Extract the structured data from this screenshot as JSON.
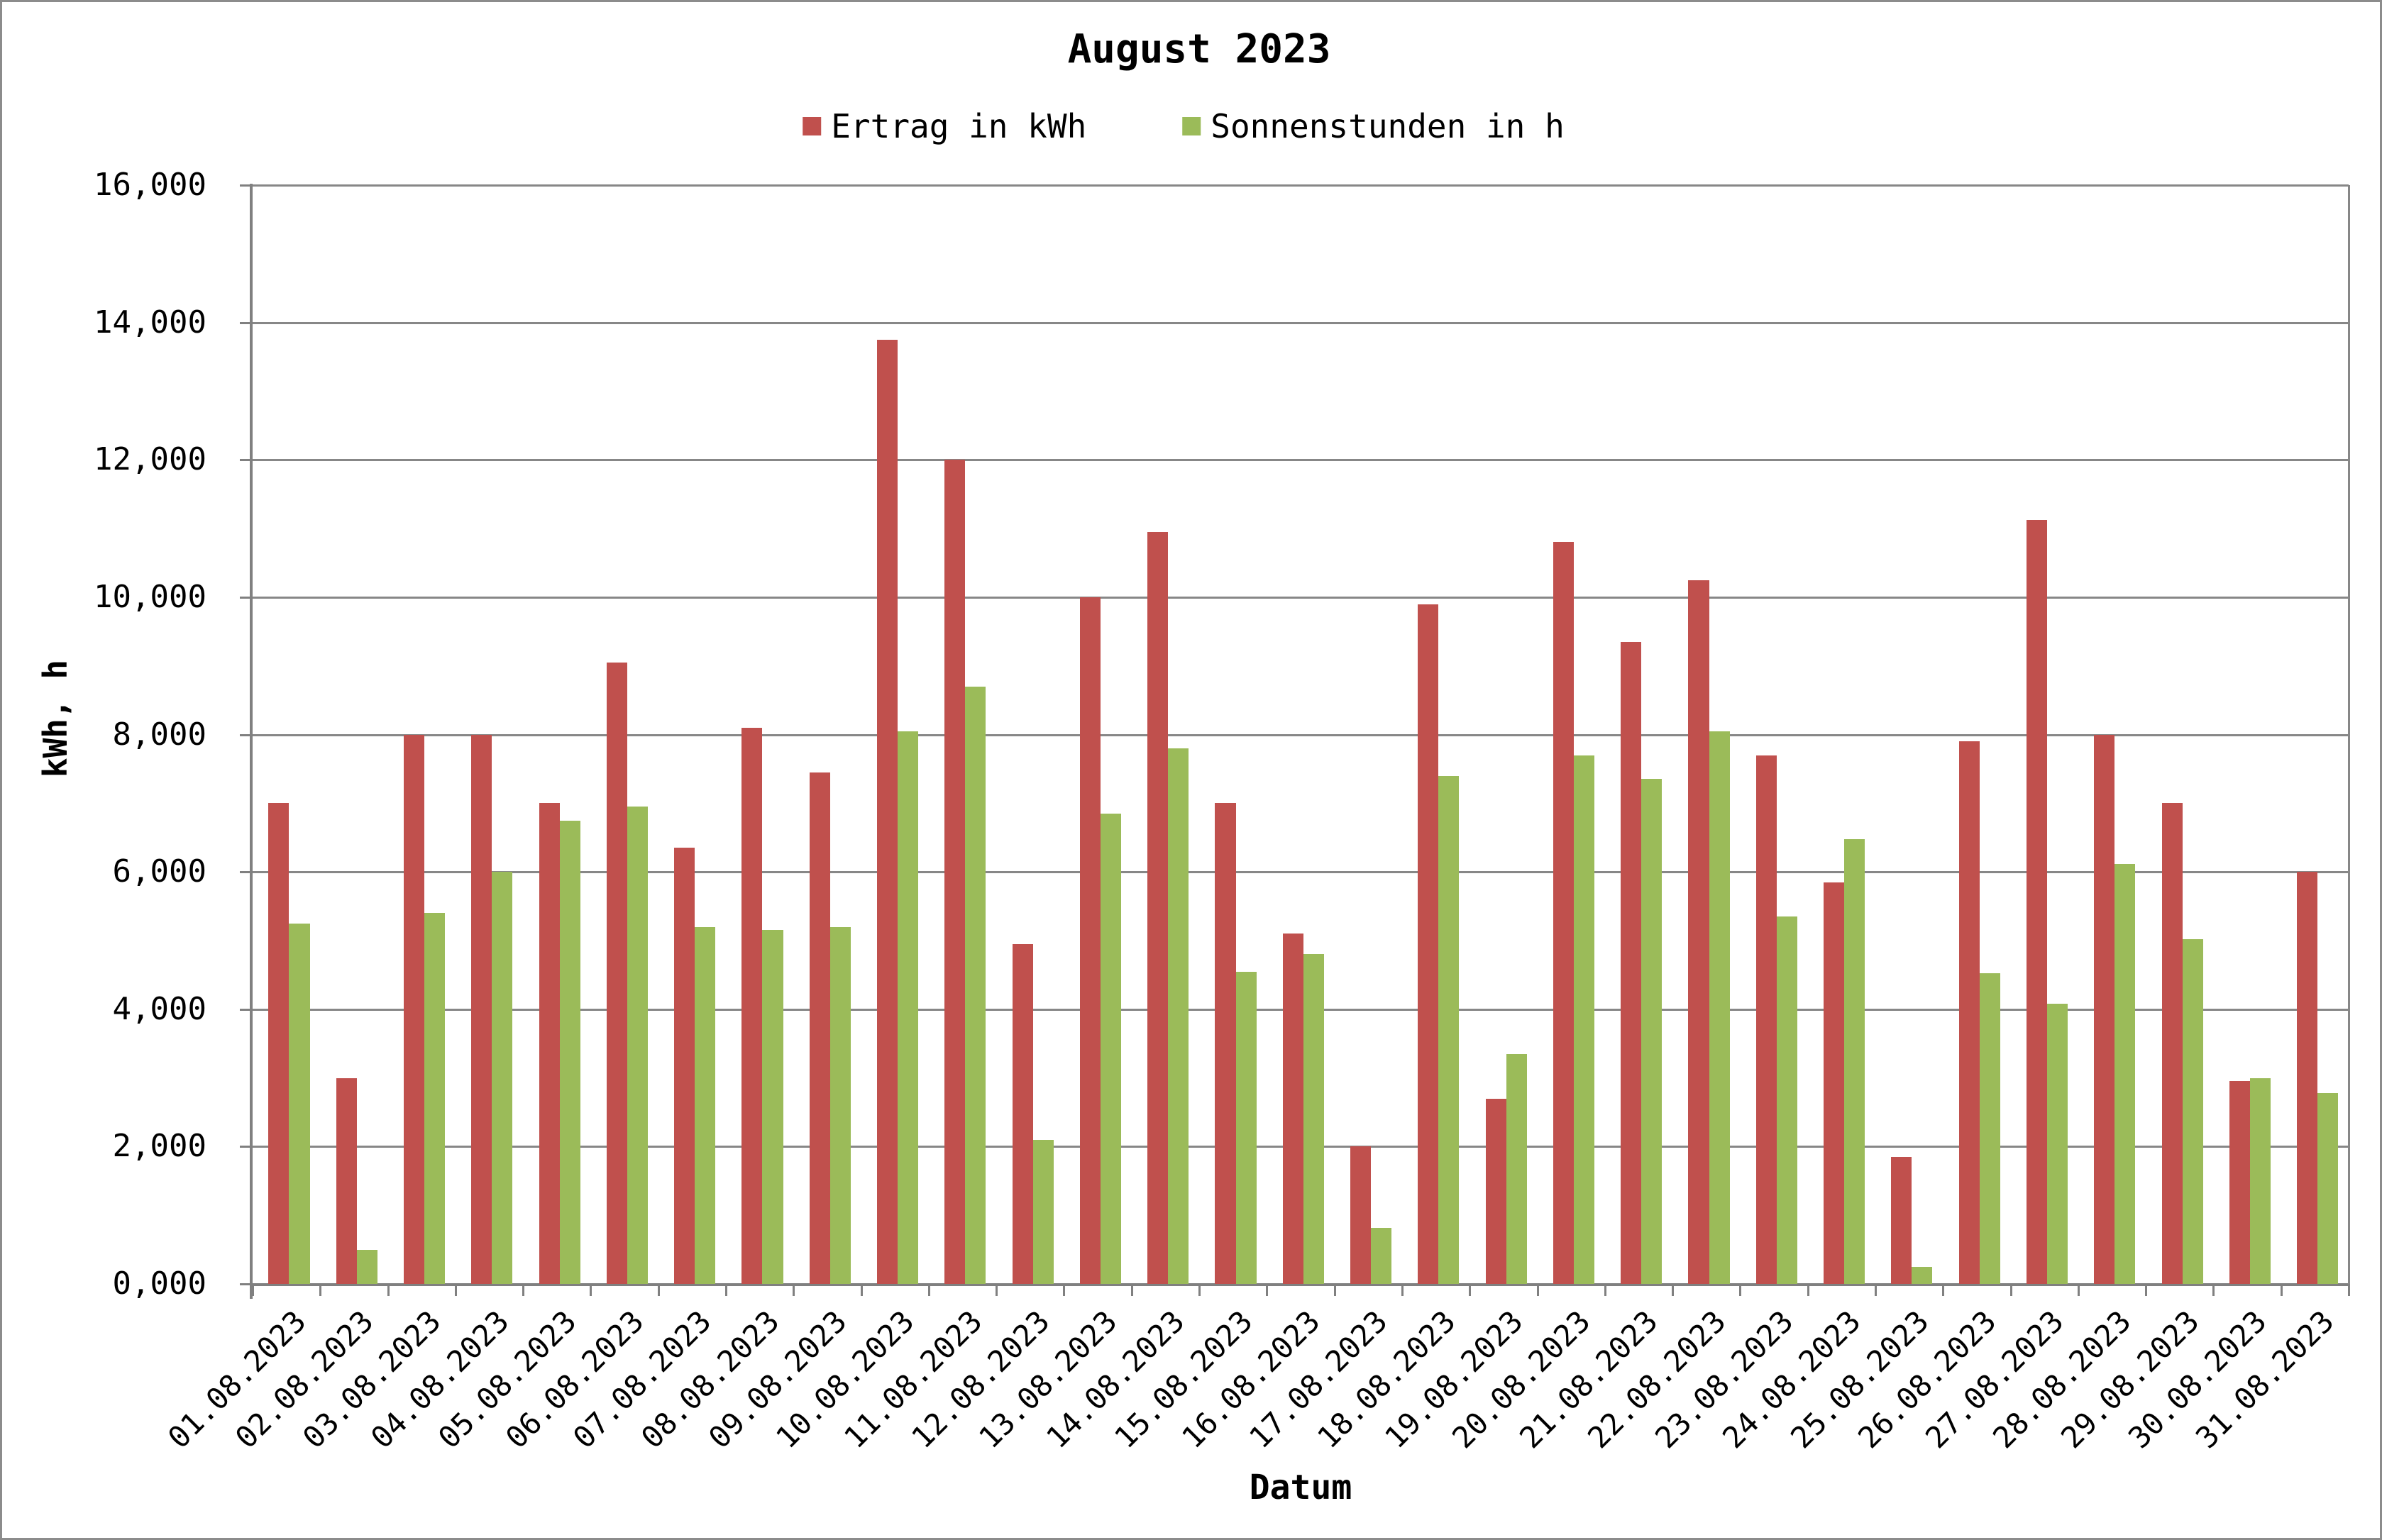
{
  "title": "August 2023",
  "legend": [
    {
      "label": "Ertrag in kWh",
      "color": "#C0504D"
    },
    {
      "label": "Sonnenstunden in h",
      "color": "#9BBB59"
    }
  ],
  "colors": {
    "series_red": "#C0504D",
    "series_green": "#9BBB59",
    "gridline": "#878787",
    "axis": "#808080",
    "frame_border": "#8C8C8C",
    "background": "#FFFFFF",
    "text": "#000000"
  },
  "chart_data": {
    "type": "bar",
    "title": "August 2023",
    "xlabel": "Datum",
    "ylabel": "kWh, h",
    "ylim": [
      0,
      16000
    ],
    "ytick_step": 2000,
    "ytick_labels": [
      "0,000",
      "2,000",
      "4,000",
      "6,000",
      "8,000",
      "10,000",
      "12,000",
      "14,000",
      "16,000"
    ],
    "grid": true,
    "legend_position": "top-center",
    "categories": [
      "01.08.2023",
      "02.08.2023",
      "03.08.2023",
      "04.08.2023",
      "05.08.2023",
      "06.08.2023",
      "07.08.2023",
      "08.08.2023",
      "09.08.2023",
      "10.08.2023",
      "11.08.2023",
      "12.08.2023",
      "13.08.2023",
      "14.08.2023",
      "15.08.2023",
      "16.08.2023",
      "17.08.2023",
      "18.08.2023",
      "19.08.2023",
      "20.08.2023",
      "21.08.2023",
      "22.08.2023",
      "23.08.2023",
      "24.08.2023",
      "25.08.2023",
      "26.08.2023",
      "27.08.2023",
      "28.08.2023",
      "29.08.2023",
      "30.08.2023",
      "31.08.2023"
    ],
    "series": [
      {
        "name": "Ertrag in kWh",
        "color": "#C0504D",
        "values": [
          7000,
          3000,
          8000,
          8000,
          7000,
          9050,
          6350,
          8100,
          7450,
          13750,
          12000,
          4950,
          10000,
          10950,
          7000,
          5100,
          2000,
          9900,
          2700,
          10800,
          9350,
          10250,
          7700,
          5850,
          1850,
          7900,
          11120,
          8000,
          7000,
          2950,
          6000
        ]
      },
      {
        "name": "Sonnenstunden in h",
        "color": "#9BBB59",
        "values": [
          5250,
          500,
          5400,
          6000,
          6750,
          6950,
          5200,
          5150,
          5200,
          8050,
          8700,
          2100,
          6850,
          7800,
          4550,
          4800,
          820,
          7400,
          3350,
          7700,
          7350,
          8050,
          5350,
          6480,
          250,
          4520,
          4080,
          6120,
          5020,
          3000,
          2780
        ]
      }
    ]
  }
}
